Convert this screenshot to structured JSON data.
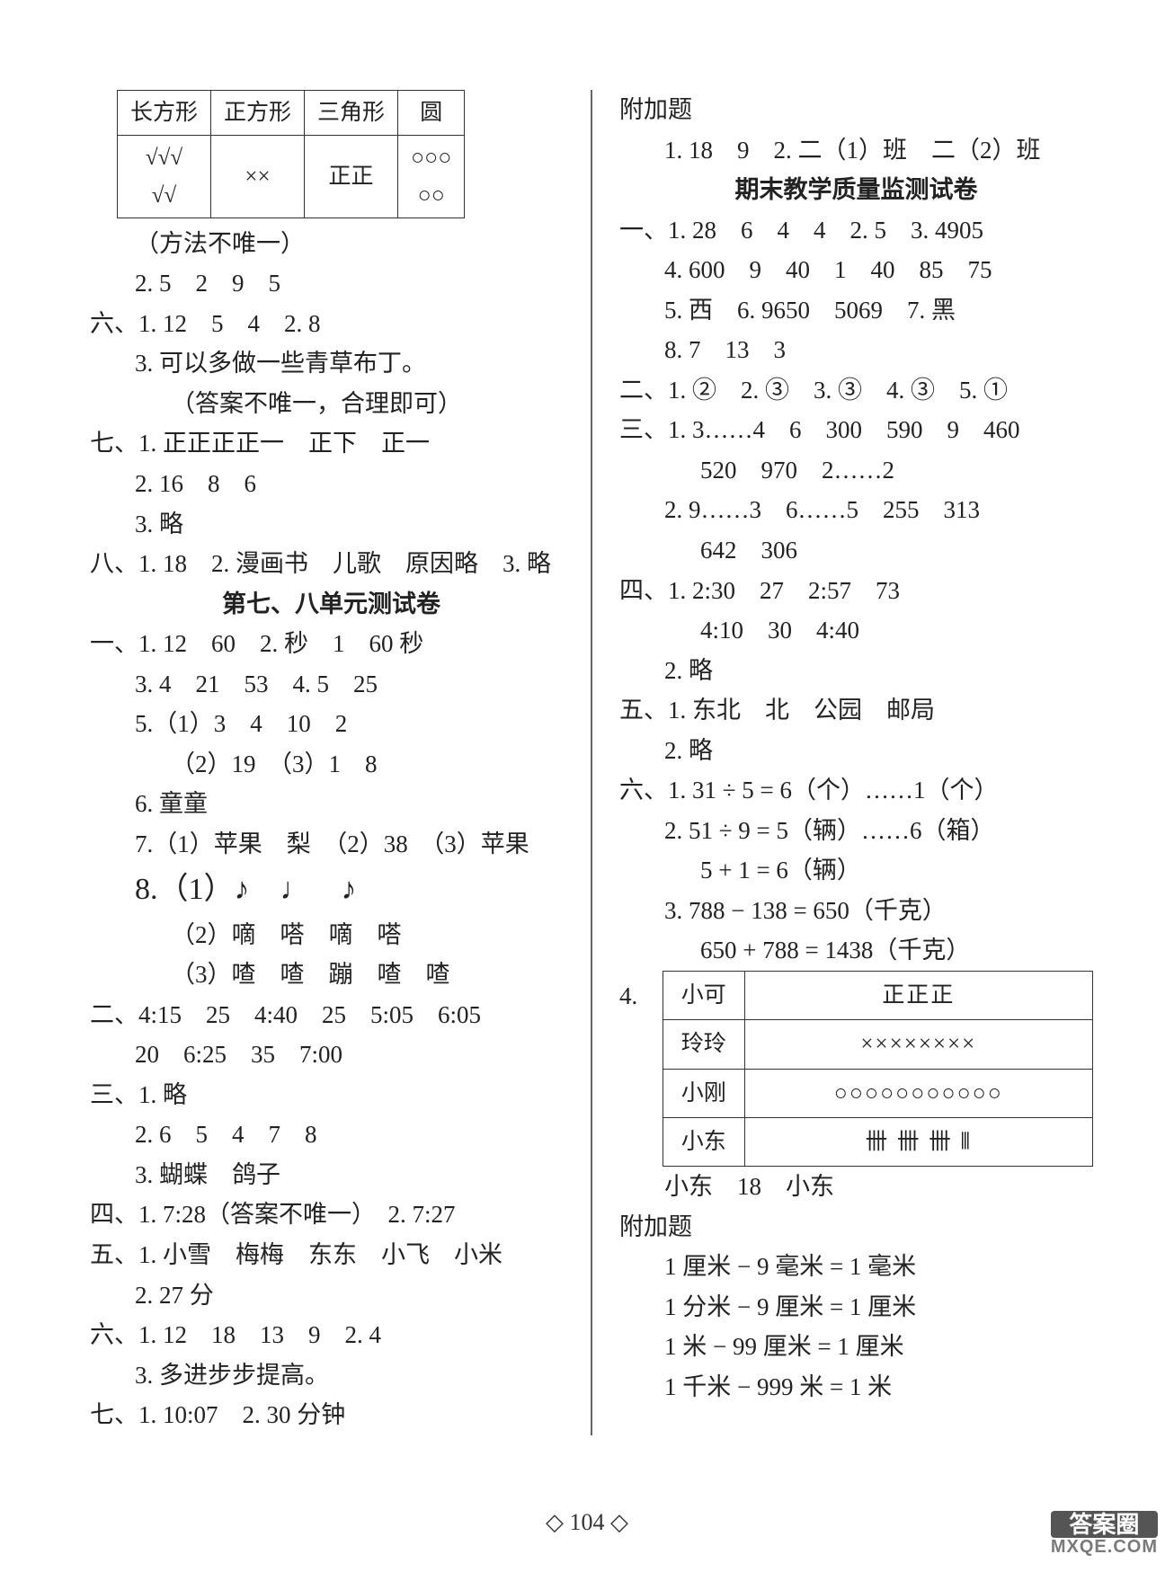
{
  "shapeTable": {
    "headers": [
      "长方形",
      "正方形",
      "三角形",
      "圆"
    ],
    "cells": [
      "√√√\n√√",
      "××",
      "正正",
      "○○○\n○○"
    ]
  },
  "left": [
    {
      "cls": "indent1",
      "t": "（方法不唯一）"
    },
    {
      "cls": "indent1",
      "t": "2. 5　2　9　5"
    },
    {
      "cls": "",
      "t": "六、1. 12　5　4　2. 8"
    },
    {
      "cls": "indent1",
      "t": "3. 可以多做一些青草布丁。"
    },
    {
      "cls": "indent2",
      "t": "（答案不唯一，合理即可）"
    },
    {
      "cls": "",
      "t": "七、1. 正正正正一　正下　正一"
    },
    {
      "cls": "indent1",
      "t": "2. 16　8　6"
    },
    {
      "cls": "indent1",
      "t": "3. 略"
    },
    {
      "cls": "",
      "t": "八、1. 18　2. 漫画书　儿歌　原因略　3. 略"
    },
    {
      "cls": "center",
      "t": "第七、八单元测试卷"
    },
    {
      "cls": "",
      "t": "一、1. 12　60　2. 秒　1　60 秒"
    },
    {
      "cls": "indent1",
      "t": "3. 4　21　53　4. 5　25"
    },
    {
      "cls": "indent1",
      "t": "5.（1）3　4　10　2"
    },
    {
      "cls": "indent2",
      "t": "（2）19　（3）1　8"
    },
    {
      "cls": "indent1",
      "t": "6. 童童"
    },
    {
      "cls": "indent1",
      "t": "7.（1）苹果　梨　（2）38　（3）苹果"
    },
    {
      "cls": "indent1 music",
      "t": "8.（1）♪　♩　♪"
    },
    {
      "cls": "indent2",
      "t": "（2）嘀　嗒　嘀　嗒"
    },
    {
      "cls": "indent2",
      "t": "（3）喳　喳　蹦　喳　喳"
    },
    {
      "cls": "",
      "t": "二、4:15　25　4:40　25　5:05　6:05"
    },
    {
      "cls": "indent1",
      "t": "20　6:25　35　7:00"
    },
    {
      "cls": "",
      "t": "三、1. 略"
    },
    {
      "cls": "indent1",
      "t": "2. 6　5　4　7　8"
    },
    {
      "cls": "indent1",
      "t": "3. 蝴蝶　鸽子"
    },
    {
      "cls": "",
      "t": "四、1. 7:28（答案不唯一）　2. 7:27"
    },
    {
      "cls": "",
      "t": "五、1. 小雪　梅梅　东东　小飞　小米"
    },
    {
      "cls": "indent1",
      "t": "2. 27 分"
    },
    {
      "cls": "",
      "t": "六、1. 12　18　13　9　2. 4"
    },
    {
      "cls": "indent1",
      "t": "3. 多进步步提高。"
    },
    {
      "cls": "",
      "t": "七、1. 10:07　2. 30 分钟"
    }
  ],
  "right": [
    {
      "cls": "",
      "t": "附加题"
    },
    {
      "cls": "indent1",
      "t": "1. 18　9　2. 二（1）班　二（2）班"
    },
    {
      "cls": "center",
      "t": "期末教学质量监测试卷"
    },
    {
      "cls": "",
      "t": "一、1. 28　6　4　4　2. 5　3. 4905"
    },
    {
      "cls": "indent1",
      "t": "4. 600　9　40　1　40　85　75"
    },
    {
      "cls": "indent1",
      "t": "5. 西　6. 9650　5069　7. 黑"
    },
    {
      "cls": "indent1",
      "t": "8. 7　13　3"
    },
    {
      "cls": "",
      "t": "二、1. ②　2. ③　3. ③　4. ③　5. ①"
    },
    {
      "cls": "",
      "t": "三、1. 3……4　6　300　590　9　460"
    },
    {
      "cls": "indent2",
      "t": "520　970　2……2"
    },
    {
      "cls": "indent1",
      "t": "2. 9……3　6……5　255　313"
    },
    {
      "cls": "indent2",
      "t": "642　306"
    },
    {
      "cls": "",
      "t": "四、1. 2:30　27　2:57　73"
    },
    {
      "cls": "indent2",
      "t": "4:10　30　4:40"
    },
    {
      "cls": "indent1",
      "t": "2. 略"
    },
    {
      "cls": "",
      "t": "五、1. 东北　北　公园　邮局"
    },
    {
      "cls": "indent1",
      "t": "2. 略"
    },
    {
      "cls": "",
      "t": "六、1. 31 ÷ 5 = 6（个）……1（个）"
    },
    {
      "cls": "indent1",
      "t": "2. 51 ÷ 9 = 5（辆）……6（箱）"
    },
    {
      "cls": "indent2",
      "t": "5 + 1 = 6（辆）"
    },
    {
      "cls": "indent1",
      "t": "3. 788 − 138 = 650（千克）"
    },
    {
      "cls": "indent2",
      "t": "650 + 788 = 1438（千克）"
    }
  ],
  "tallyLead": "4.",
  "tally": {
    "rows": [
      [
        "小可",
        "正正正"
      ],
      [
        "玲玲",
        "××××××××"
      ],
      [
        "小刚",
        "○○○○○○○○○○○"
      ],
      [
        "小东",
        "卌 卌 卌 ⦀"
      ]
    ]
  },
  "rightAfter": [
    {
      "cls": "indent1",
      "t": "小东　18　小东"
    },
    {
      "cls": "",
      "t": "附加题"
    },
    {
      "cls": "indent1",
      "t": "1 厘米 − 9 毫米 = 1 毫米"
    },
    {
      "cls": "indent1",
      "t": "1 分米 − 9 厘米 = 1 厘米"
    },
    {
      "cls": "indent1",
      "t": "1 米 − 99 厘米 = 1 厘米"
    },
    {
      "cls": "indent1",
      "t": "1 千米 − 999 米 = 1 米"
    }
  ],
  "pageNum": "104",
  "wmTop": "答案圈",
  "wmBot": "MXQE.COM"
}
